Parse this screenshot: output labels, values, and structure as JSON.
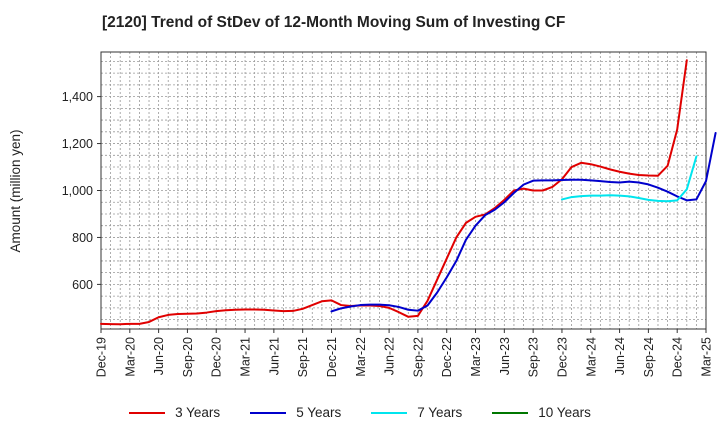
{
  "chart_data": {
    "type": "line",
    "title": "[2120]  Trend of StDev of 12-Month Moving Sum of Investing CF",
    "xlabel": "",
    "ylabel": "Amount (million yen)",
    "ylim": [
      410,
      1590
    ],
    "yticks": [
      600,
      800,
      1000,
      1200,
      1400
    ],
    "ytick_labels": [
      "600",
      "800",
      "1,000",
      "1,200",
      "1,400"
    ],
    "x_tick_labels": [
      "Dec-19",
      "Mar-20",
      "Jun-20",
      "Sep-20",
      "Dec-20",
      "Mar-21",
      "Jun-21",
      "Sep-21",
      "Dec-21",
      "Mar-22",
      "Jun-22",
      "Sep-22",
      "Dec-22",
      "Mar-23",
      "Jun-23",
      "Sep-23",
      "Dec-23",
      "Mar-24",
      "Jun-24",
      "Sep-24",
      "Dec-24",
      "Mar-25"
    ],
    "grid": true,
    "legend_position": "bottom",
    "series": [
      {
        "name": "3 Years",
        "color": "#e00000",
        "start_month": 0,
        "values": [
          432,
          431,
          430,
          432,
          432,
          440,
          460,
          470,
          474,
          475,
          476,
          480,
          486,
          490,
          492,
          493,
          493,
          492,
          489,
          486,
          487,
          496,
          512,
          528,
          532,
          512,
          508,
          510,
          510,
          508,
          500,
          482,
          462,
          466,
          530,
          620,
          710,
          800,
          862,
          888,
          898,
          925,
          960,
          1000,
          1008,
          1000,
          1000,
          1015,
          1048,
          1100,
          1118,
          1112,
          1102,
          1090,
          1080,
          1072,
          1066,
          1064,
          1063,
          1105,
          1260,
          1555
        ]
      },
      {
        "name": "5 Years",
        "color": "#0000cc",
        "start_month": 24,
        "values": [
          485,
          498,
          506,
          512,
          514,
          514,
          511,
          504,
          492,
          488,
          510,
          565,
          630,
          700,
          790,
          850,
          895,
          918,
          950,
          990,
          1025,
          1042,
          1043,
          1043,
          1045,
          1046,
          1046,
          1043,
          1040,
          1036,
          1034,
          1038,
          1034,
          1026,
          1012,
          995,
          975,
          958,
          962,
          1040,
          1245
        ]
      },
      {
        "name": "7 Years",
        "color": "#00e5ee",
        "start_month": 48,
        "values": [
          962,
          972,
          976,
          978,
          978,
          980,
          978,
          975,
          968,
          960,
          956,
          954,
          958,
          1005,
          1145
        ]
      },
      {
        "name": "10 Years",
        "color": "#007700",
        "start_month": 0,
        "values": []
      }
    ]
  }
}
